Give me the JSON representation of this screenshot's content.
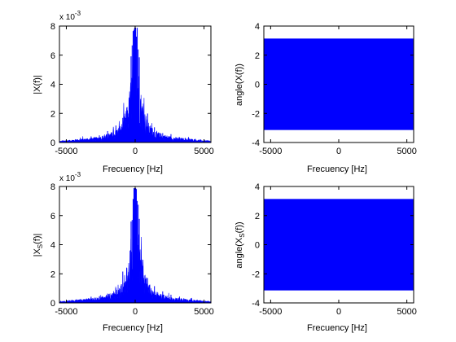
{
  "colors": {
    "line": "#0000ff",
    "axis": "#000000",
    "background": "#ffffff"
  },
  "chart_data": [
    {
      "type": "line",
      "panel": "top-left",
      "xlabel": "Frecuency [Hz]",
      "ylabel": "|X(f)|",
      "ylabel_sub": "",
      "ylabel_suffix": "",
      "exponent_label": "x 10",
      "exponent_power": "-3",
      "xlim": [
        -5500,
        5500
      ],
      "ylim": [
        0,
        8
      ],
      "xticks": [
        -5000,
        0,
        5000
      ],
      "xtick_labels": [
        "-5000",
        "0",
        "5000"
      ],
      "yticks": [
        0,
        2,
        4,
        6,
        8
      ],
      "ytick_labels": [
        "0",
        "2",
        "4",
        "6",
        "8"
      ],
      "y_scale_multiplier": 0.001,
      "series": [
        {
          "values_desc": "magnitude spectrum envelope",
          "x": [
            -5500,
            -5000,
            -4500,
            -4000,
            -3500,
            -3000,
            -2500,
            -2000,
            -1500,
            -1000,
            -700,
            -500,
            -300,
            -200,
            -100,
            -50,
            0,
            50,
            100,
            200,
            300,
            500,
            700,
            1000,
            1500,
            2000,
            2500,
            3000,
            3500,
            4000,
            4500,
            5000,
            5500
          ],
          "y": [
            0.1,
            0.15,
            0.2,
            0.25,
            0.3,
            0.35,
            0.45,
            0.6,
            0.8,
            1.3,
            2.2,
            2.9,
            4.6,
            5.4,
            6.4,
            7.2,
            7.9,
            7.2,
            6.4,
            5.4,
            4.6,
            2.9,
            2.2,
            1.3,
            0.8,
            0.6,
            0.45,
            0.35,
            0.3,
            0.25,
            0.2,
            0.15,
            0.1
          ]
        }
      ]
    },
    {
      "type": "area",
      "panel": "top-right",
      "xlabel": "Frecuency [Hz]",
      "ylabel": "angle(X(f))",
      "ylabel_sub": "",
      "xlim": [
        -5500,
        5500
      ],
      "ylim": [
        -4,
        4
      ],
      "xticks": [
        -5000,
        0,
        5000
      ],
      "xtick_labels": [
        "-5000",
        "0",
        "5000"
      ],
      "yticks": [
        -4,
        -2,
        0,
        2,
        4
      ],
      "ytick_labels": [
        "-4",
        "-2",
        "0",
        "2",
        "4"
      ],
      "fill_range": [
        -3.1416,
        3.1416
      ]
    },
    {
      "type": "line",
      "panel": "bottom-left",
      "xlabel": "Frecuency [Hz]",
      "ylabel": "|X",
      "ylabel_sub": "S",
      "ylabel_suffix": "(f)|",
      "exponent_label": "x 10",
      "exponent_power": "-3",
      "xlim": [
        -5500,
        5500
      ],
      "ylim": [
        0,
        8
      ],
      "xticks": [
        -5000,
        0,
        5000
      ],
      "xtick_labels": [
        "-5000",
        "0",
        "5000"
      ],
      "yticks": [
        0,
        2,
        4,
        6,
        8
      ],
      "ytick_labels": [
        "0",
        "2",
        "4",
        "6",
        "8"
      ],
      "y_scale_multiplier": 0.001,
      "series": [
        {
          "values_desc": "magnitude spectrum envelope",
          "x": [
            -5500,
            -5000,
            -4500,
            -4000,
            -3500,
            -3000,
            -2500,
            -2000,
            -1500,
            -1000,
            -700,
            -500,
            -300,
            -200,
            -100,
            -50,
            0,
            50,
            100,
            200,
            300,
            500,
            700,
            1000,
            1500,
            2000,
            2500,
            3000,
            3500,
            4000,
            4500,
            5000,
            5500
          ],
          "y": [
            0.1,
            0.15,
            0.2,
            0.25,
            0.3,
            0.35,
            0.45,
            0.6,
            0.8,
            1.3,
            2.2,
            2.9,
            4.6,
            5.4,
            6.4,
            7.2,
            7.9,
            7.2,
            6.4,
            5.4,
            4.6,
            2.9,
            2.2,
            1.3,
            0.8,
            0.6,
            0.45,
            0.35,
            0.3,
            0.25,
            0.2,
            0.15,
            0.1
          ]
        }
      ]
    },
    {
      "type": "area",
      "panel": "bottom-right",
      "xlabel": "Frecuency [Hz]",
      "ylabel": "angle(X",
      "ylabel_sub": "S",
      "ylabel_suffix": "(f))",
      "xlim": [
        -5500,
        5500
      ],
      "ylim": [
        -4,
        4
      ],
      "xticks": [
        -5000,
        0,
        5000
      ],
      "xtick_labels": [
        "-5000",
        "0",
        "5000"
      ],
      "yticks": [
        -4,
        -2,
        0,
        2,
        4
      ],
      "ytick_labels": [
        "-4",
        "-2",
        "0",
        "2",
        "4"
      ],
      "fill_range": [
        -3.1416,
        3.1416
      ]
    }
  ]
}
